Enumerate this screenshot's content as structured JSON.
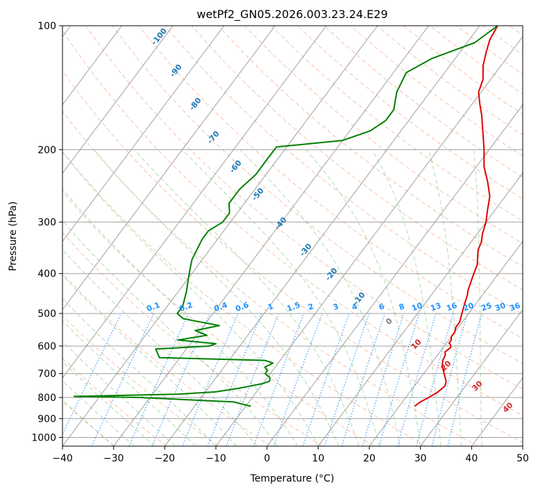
{
  "chart_data": {
    "type": "line",
    "title": "wetPf2_GN05.2026.003.23.24.E29",
    "xlabel": "Temperature (°C)",
    "ylabel": "Pressure (hPa)",
    "xlim": [
      -40,
      50
    ],
    "ylim": [
      1050,
      100
    ],
    "y_scale": "log",
    "grid": true,
    "skew": true,
    "x_ticks": [
      -40,
      -30,
      -20,
      -10,
      0,
      10,
      20,
      30,
      40,
      50
    ],
    "y_ticks": [
      100,
      200,
      300,
      400,
      500,
      600,
      700,
      800,
      900,
      1000
    ],
    "series": [
      {
        "name": "",
        "role": "temperature",
        "color": "#e00000",
        "points": [
          [
            23.0,
            840
          ],
          [
            23.5,
            820
          ],
          [
            24.5,
            800
          ],
          [
            25.5,
            775
          ],
          [
            26.0,
            750
          ],
          [
            25.5,
            730
          ],
          [
            24.5,
            710
          ],
          [
            23.5,
            690
          ],
          [
            22.5,
            670
          ],
          [
            21.8,
            650
          ],
          [
            21.5,
            630
          ],
          [
            21.0,
            620
          ],
          [
            21.5,
            605
          ],
          [
            21.0,
            595
          ],
          [
            20.5,
            590
          ],
          [
            20.5,
            580
          ],
          [
            20.0,
            570
          ],
          [
            20.0,
            555
          ],
          [
            19.5,
            540
          ],
          [
            19.5,
            525
          ],
          [
            19.0,
            510
          ],
          [
            18.5,
            495
          ],
          [
            18.0,
            480
          ],
          [
            17.5,
            465
          ],
          [
            17.0,
            450
          ],
          [
            16.5,
            440
          ],
          [
            16.0,
            425
          ],
          [
            15.5,
            410
          ],
          [
            15.0,
            395
          ],
          [
            14.5,
            380
          ],
          [
            13.5,
            365
          ],
          [
            12.5,
            350
          ],
          [
            12.0,
            335
          ],
          [
            11.0,
            320
          ],
          [
            10.0,
            300
          ],
          [
            8.5,
            280
          ],
          [
            7.0,
            260
          ],
          [
            4.5,
            240
          ],
          [
            1.5,
            220
          ],
          [
            -1.0,
            200
          ],
          [
            -4.0,
            180
          ],
          [
            -6.5,
            165
          ],
          [
            -8.5,
            155
          ],
          [
            -10.5,
            145
          ],
          [
            -11.5,
            135
          ],
          [
            -13.5,
            125
          ],
          [
            -15.0,
            115
          ],
          [
            -16.0,
            108
          ],
          [
            -16.5,
            100
          ]
        ]
      },
      {
        "name": "",
        "role": "dewpoint",
        "color": "#007f00",
        "points": [
          [
            -9,
            840
          ],
          [
            -13,
            820
          ],
          [
            -32,
            800
          ],
          [
            -45,
            795
          ],
          [
            -25,
            785
          ],
          [
            -18,
            775
          ],
          [
            -14,
            760
          ],
          [
            -10,
            740
          ],
          [
            -9,
            730
          ],
          [
            -9.5,
            715
          ],
          [
            -11,
            700
          ],
          [
            -11,
            688
          ],
          [
            -12,
            675
          ],
          [
            -11,
            660
          ],
          [
            -13,
            650
          ],
          [
            -34,
            640
          ],
          [
            -36,
            610
          ],
          [
            -26,
            600
          ],
          [
            -25,
            592
          ],
          [
            -33,
            580
          ],
          [
            -28,
            565
          ],
          [
            -31,
            550
          ],
          [
            -27,
            535
          ],
          [
            -35,
            515
          ],
          [
            -37,
            500
          ],
          [
            -37,
            480
          ],
          [
            -38.5,
            440
          ],
          [
            -40,
            410
          ],
          [
            -41,
            390
          ],
          [
            -42,
            370
          ],
          [
            -42.5,
            350
          ],
          [
            -43,
            330
          ],
          [
            -43,
            315
          ],
          [
            -41.5,
            300
          ],
          [
            -41.5,
            285
          ],
          [
            -43,
            270
          ],
          [
            -43,
            250
          ],
          [
            -42,
            230
          ],
          [
            -42,
            210
          ],
          [
            -42,
            197
          ],
          [
            -30,
            190
          ],
          [
            -26,
            180
          ],
          [
            -24.5,
            170
          ],
          [
            -24.5,
            160
          ],
          [
            -26.5,
            145
          ],
          [
            -27.5,
            130
          ],
          [
            -24.5,
            120
          ],
          [
            -18.5,
            110
          ],
          [
            -16.5,
            100
          ]
        ]
      }
    ],
    "isotherm_labels": [
      "-100",
      "-90",
      "-80",
      "-70",
      "-60",
      "-50",
      "-40",
      "-30",
      "-20",
      "-10"
    ],
    "mixing_ratio_labels": [
      "0.1",
      "0.2",
      "0.4",
      "0.6",
      "1",
      "1.5",
      "2",
      "3",
      "4",
      "6",
      "8",
      "10",
      "13",
      "16",
      "20",
      "25",
      "30",
      "36"
    ],
    "moist_adiabat_labels": [
      "0",
      "10",
      "20",
      "30",
      "40"
    ],
    "colors": {
      "isotherm_label": "#1f77b4",
      "mixing_ratio": "#1e90ff",
      "dry_adiabat": "#f5a07a",
      "moist_adiabat_label": "#d62728",
      "moist_adiabat": "#7fbf7f",
      "grid": "#a0a0a0"
    }
  }
}
